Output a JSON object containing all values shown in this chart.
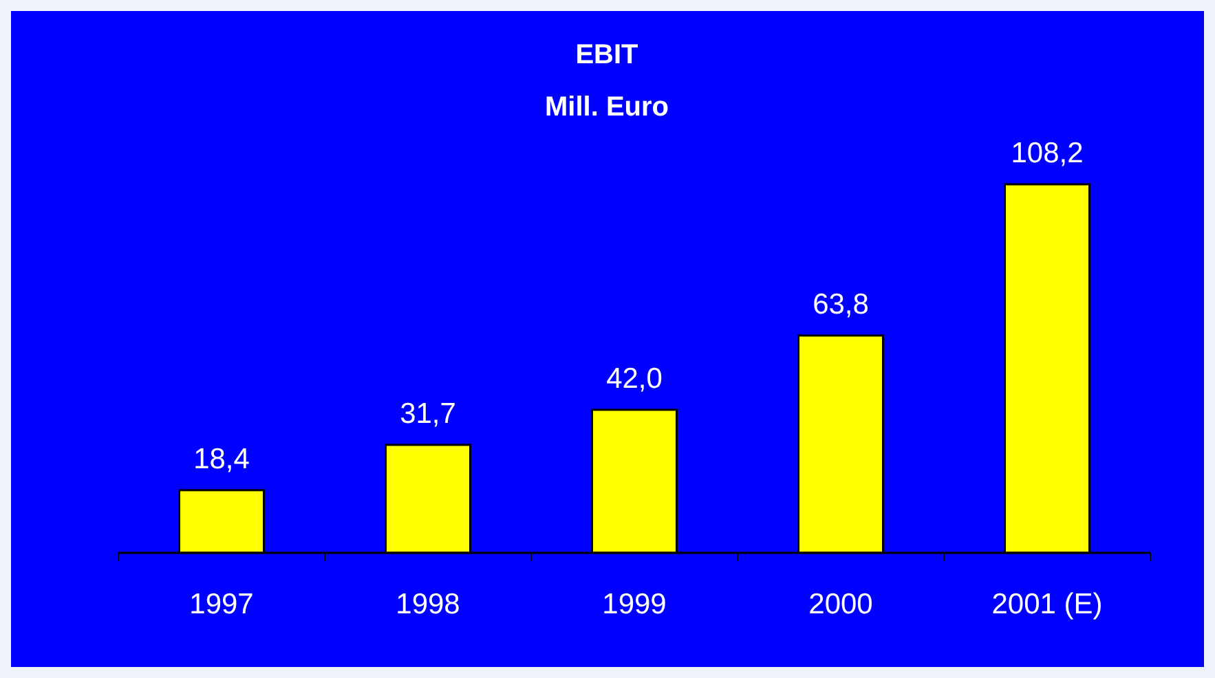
{
  "chart_data": {
    "type": "bar",
    "title": "EBIT",
    "subtitle": "Mill. Euro",
    "categories": [
      "1997",
      "1998",
      "1999",
      "2000",
      "2001 (E)"
    ],
    "values": [
      18.4,
      31.7,
      42.0,
      63.8,
      108.2
    ],
    "value_labels": [
      "18,4",
      "31,7",
      "42,0",
      "63,8",
      "108,2"
    ],
    "color": "#ffff00"
  }
}
